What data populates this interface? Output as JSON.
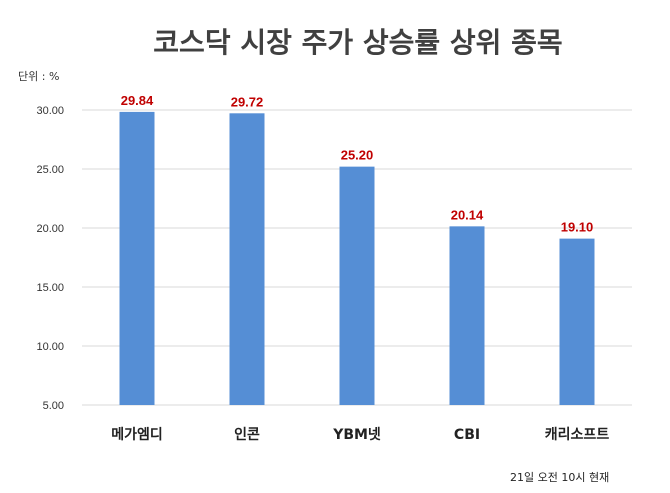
{
  "chart_data": {
    "type": "bar",
    "title": "코스닥 시장 주가 상승률 상위 종목",
    "unit_label": "단위 : %",
    "categories": [
      "메가엠디",
      "인콘",
      "YBM넷",
      "CBI",
      "캐리소프트"
    ],
    "values": [
      29.84,
      29.72,
      25.2,
      20.14,
      19.1
    ],
    "data_labels": [
      "29.84",
      "29.72",
      "25.20",
      "20.14",
      "19.10"
    ],
    "ylim": [
      5,
      30
    ],
    "yticks": [
      "5.00",
      "10.00",
      "15.00",
      "20.00",
      "25.00",
      "30.00"
    ],
    "ytick_values": [
      5,
      10,
      15,
      20,
      25,
      30
    ],
    "grid": true,
    "bar_color": "#558ed5",
    "label_color": "#c00000",
    "footnote": "21일  오전 10시 현재"
  }
}
